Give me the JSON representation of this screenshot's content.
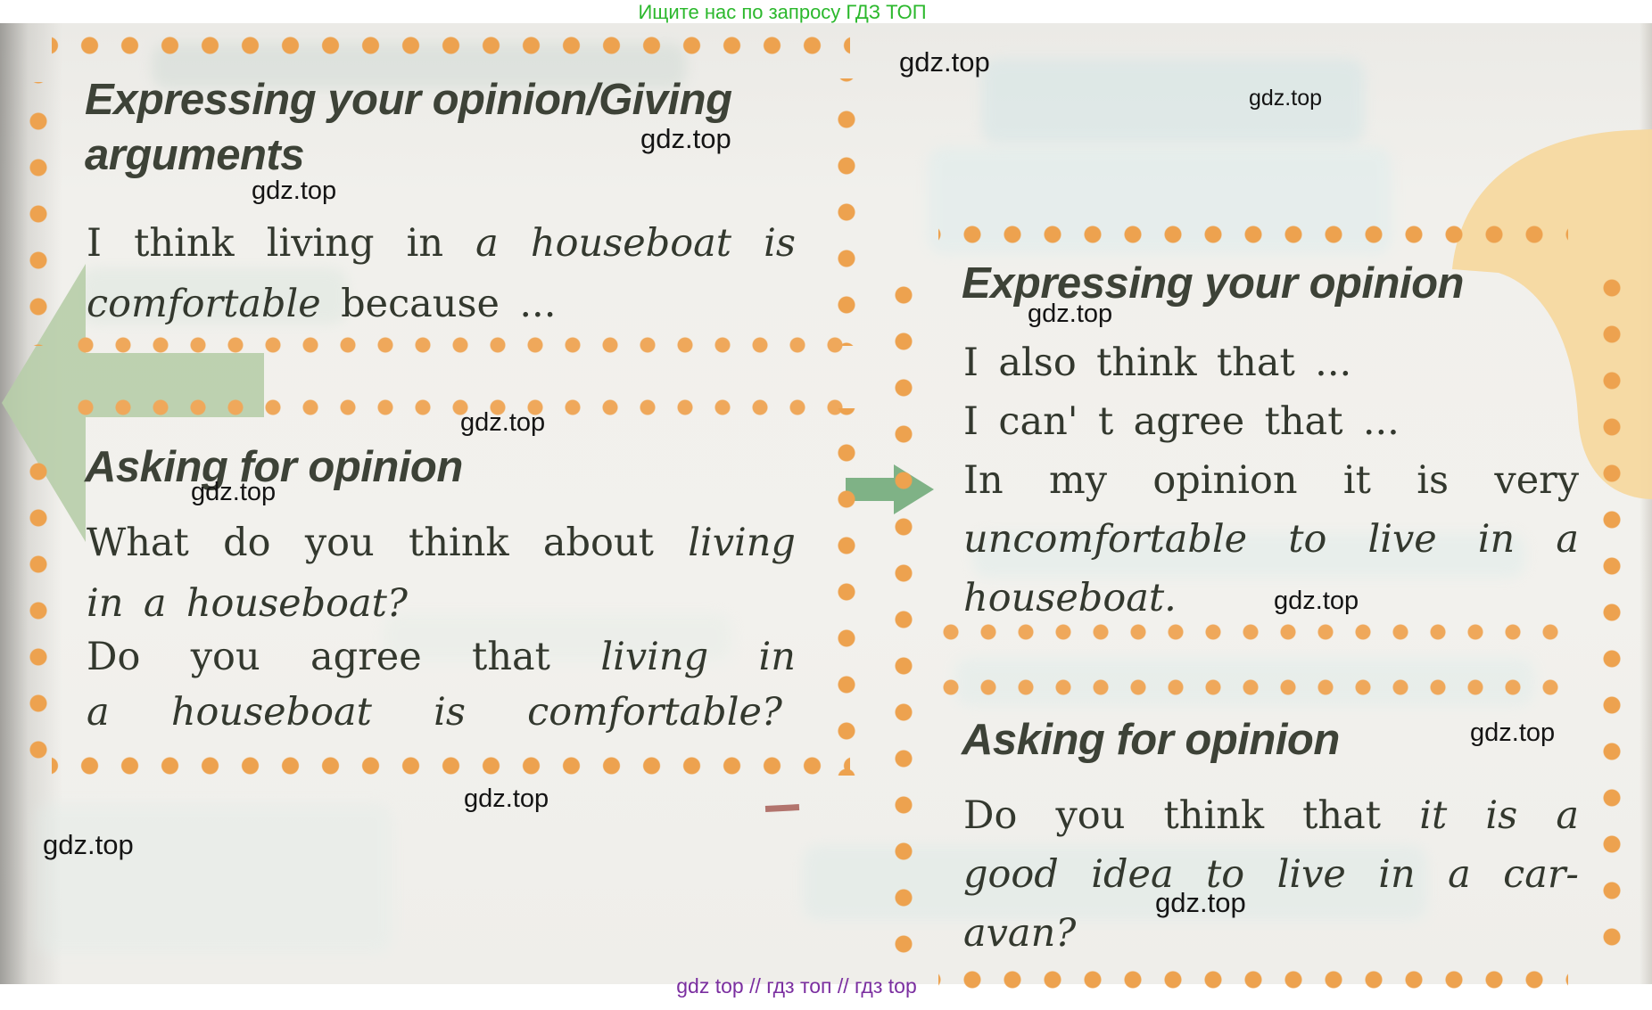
{
  "page": {
    "promo": "Ищите нас по запросу ГДЗ ТОП",
    "watermark": "gdz.top",
    "footer": "gdz top  //  гдз топ  //  гдз top"
  },
  "boxes": {
    "left_top": {
      "heading_line1": "Expressing your opinion/Giving",
      "heading_line2": "arguments",
      "line1": [
        {
          "t": "I"
        },
        {
          "t": "think"
        },
        {
          "t": "living"
        },
        {
          "t": "in"
        },
        {
          "t": "a",
          "i": 1
        },
        {
          "t": "houseboat",
          "i": 1
        },
        {
          "t": "is",
          "i": 1
        }
      ],
      "line2": [
        {
          "t": "comfortable",
          "i": 1
        },
        {
          "t": "because"
        },
        {
          "t": "..."
        }
      ]
    },
    "left_bottom": {
      "heading": "Asking for opinion",
      "line1": [
        {
          "t": "What"
        },
        {
          "t": "do"
        },
        {
          "t": "you"
        },
        {
          "t": "think"
        },
        {
          "t": "about"
        },
        {
          "t": "living",
          "i": 1
        }
      ],
      "line2": [
        {
          "t": "in",
          "i": 1
        },
        {
          "t": "a",
          "i": 1
        },
        {
          "t": "houseboat?",
          "i": 1
        }
      ],
      "line3": [
        {
          "t": "Do"
        },
        {
          "t": "you"
        },
        {
          "t": "agree"
        },
        {
          "t": "that"
        },
        {
          "t": "living",
          "i": 1
        },
        {
          "t": "in",
          "i": 1
        }
      ],
      "line4": [
        {
          "t": "a",
          "i": 1
        },
        {
          "t": "houseboat",
          "i": 1
        },
        {
          "t": "is",
          "i": 1
        },
        {
          "t": "comfortable?",
          "i": 1
        }
      ]
    },
    "right_top": {
      "heading": "Expressing your opinion",
      "line1": [
        {
          "t": "I"
        },
        {
          "t": "also"
        },
        {
          "t": "think"
        },
        {
          "t": "that"
        },
        {
          "t": "..."
        }
      ],
      "line2": [
        {
          "t": "I"
        },
        {
          "t": "can'"
        },
        {
          "t": "t"
        },
        {
          "t": "agree"
        },
        {
          "t": "that"
        },
        {
          "t": "..."
        }
      ],
      "line3": [
        {
          "t": "In"
        },
        {
          "t": "my"
        },
        {
          "t": "opinion"
        },
        {
          "t": "it"
        },
        {
          "t": "is"
        },
        {
          "t": "very"
        }
      ],
      "line4": [
        {
          "t": "uncomfortable",
          "i": 1
        },
        {
          "t": "to",
          "i": 1
        },
        {
          "t": "live",
          "i": 1
        },
        {
          "t": "in",
          "i": 1
        },
        {
          "t": "a",
          "i": 1
        }
      ],
      "line5": [
        {
          "t": "houseboat.",
          "i": 1
        }
      ]
    },
    "right_bottom": {
      "heading": "Asking for opinion",
      "line1": [
        {
          "t": "Do"
        },
        {
          "t": "you"
        },
        {
          "t": "think"
        },
        {
          "t": "that"
        },
        {
          "t": "it",
          "i": 1
        },
        {
          "t": "is",
          "i": 1
        },
        {
          "t": "a",
          "i": 1
        }
      ],
      "line2": [
        {
          "t": "good",
          "i": 1
        },
        {
          "t": "idea",
          "i": 1
        },
        {
          "t": "to",
          "i": 1
        },
        {
          "t": "live",
          "i": 1
        },
        {
          "t": "in",
          "i": 1
        },
        {
          "t": "a",
          "i": 1
        },
        {
          "t": "car-",
          "i": 1
        }
      ],
      "line3": [
        {
          "t": "avan?",
          "i": 1
        }
      ]
    }
  },
  "colors": {
    "dot_orange": "#eda24f",
    "tan_blob": "#f6d8a0",
    "sage_arrow": "#b7cda9",
    "green_arrow": "#7fb286",
    "promo_green": "#2bb82c",
    "footer_purple": "#7b2fa0",
    "heading_ink": "#3d4237",
    "body_ink": "#33382e"
  }
}
